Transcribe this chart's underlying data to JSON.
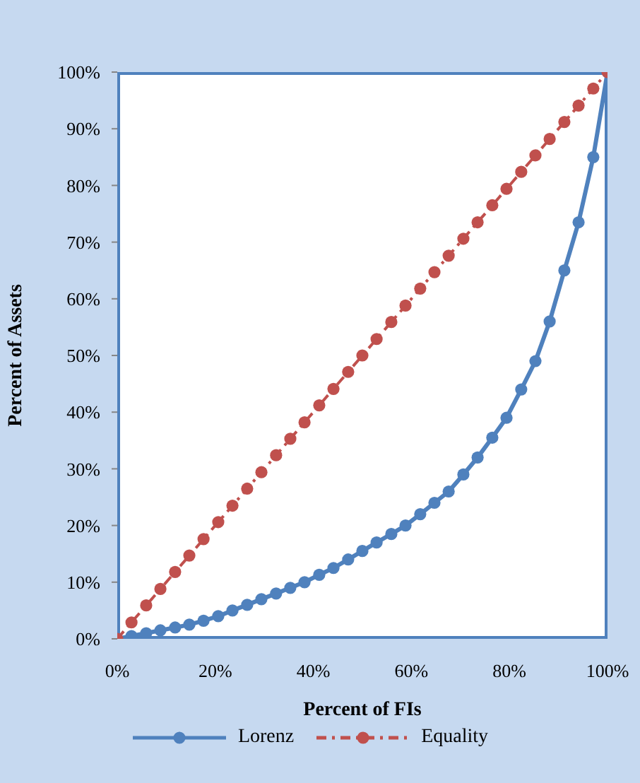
{
  "chart_data": {
    "type": "line",
    "xlabel": "Percent of FIs",
    "ylabel": "Percent of Assets",
    "x": [
      0,
      2.9,
      5.9,
      8.8,
      11.8,
      14.7,
      17.6,
      20.6,
      23.5,
      26.5,
      29.4,
      32.4,
      35.3,
      38.2,
      41.2,
      44.1,
      47.1,
      50,
      52.9,
      55.9,
      58.8,
      61.8,
      64.7,
      67.6,
      70.6,
      73.5,
      76.5,
      79.4,
      82.4,
      85.3,
      88.2,
      91.2,
      94.1,
      97.1,
      100
    ],
    "series": [
      {
        "name": "Lorenz",
        "color": "#4f81bd",
        "line_style": "solid",
        "values": [
          0,
          0.5,
          1,
          1.5,
          2,
          2.5,
          3.2,
          4,
          5,
          6,
          7,
          8,
          9,
          10,
          11.3,
          12.5,
          14,
          15.5,
          17,
          18.5,
          20,
          22,
          24,
          26,
          29,
          32,
          35.5,
          39,
          44,
          49,
          56,
          65,
          73.5,
          85,
          100
        ]
      },
      {
        "name": "Equality",
        "color": "#c0504d",
        "line_style": "dashed",
        "values": [
          0,
          2.9,
          5.9,
          8.8,
          11.8,
          14.7,
          17.6,
          20.6,
          23.5,
          26.5,
          29.4,
          32.4,
          35.3,
          38.2,
          41.2,
          44.1,
          47.1,
          50,
          52.9,
          55.9,
          58.8,
          61.8,
          64.7,
          67.6,
          70.6,
          73.5,
          76.5,
          79.4,
          82.4,
          85.3,
          88.2,
          91.2,
          94.1,
          97.1,
          100
        ]
      }
    ],
    "xlim": [
      0,
      100
    ],
    "xticks": [
      {
        "value": 0,
        "label": "0%"
      },
      {
        "value": 20,
        "label": "20%"
      },
      {
        "value": 40,
        "label": "40%"
      },
      {
        "value": 60,
        "label": "60%"
      },
      {
        "value": 80,
        "label": "80%"
      },
      {
        "value": 100,
        "label": "100%"
      }
    ],
    "ylim": [
      0,
      100
    ],
    "yticks": [
      {
        "value": 0,
        "label": "0%"
      },
      {
        "value": 10,
        "label": "10%"
      },
      {
        "value": 20,
        "label": "20%"
      },
      {
        "value": 30,
        "label": "30%"
      },
      {
        "value": 40,
        "label": "40%"
      },
      {
        "value": 50,
        "label": "50%"
      },
      {
        "value": 60,
        "label": "60%"
      },
      {
        "value": 70,
        "label": "70%"
      },
      {
        "value": 80,
        "label": "80%"
      },
      {
        "value": 90,
        "label": "90%"
      },
      {
        "value": 100,
        "label": "100%"
      }
    ],
    "grid": false,
    "legend": "bottom",
    "marker": "circle"
  }
}
